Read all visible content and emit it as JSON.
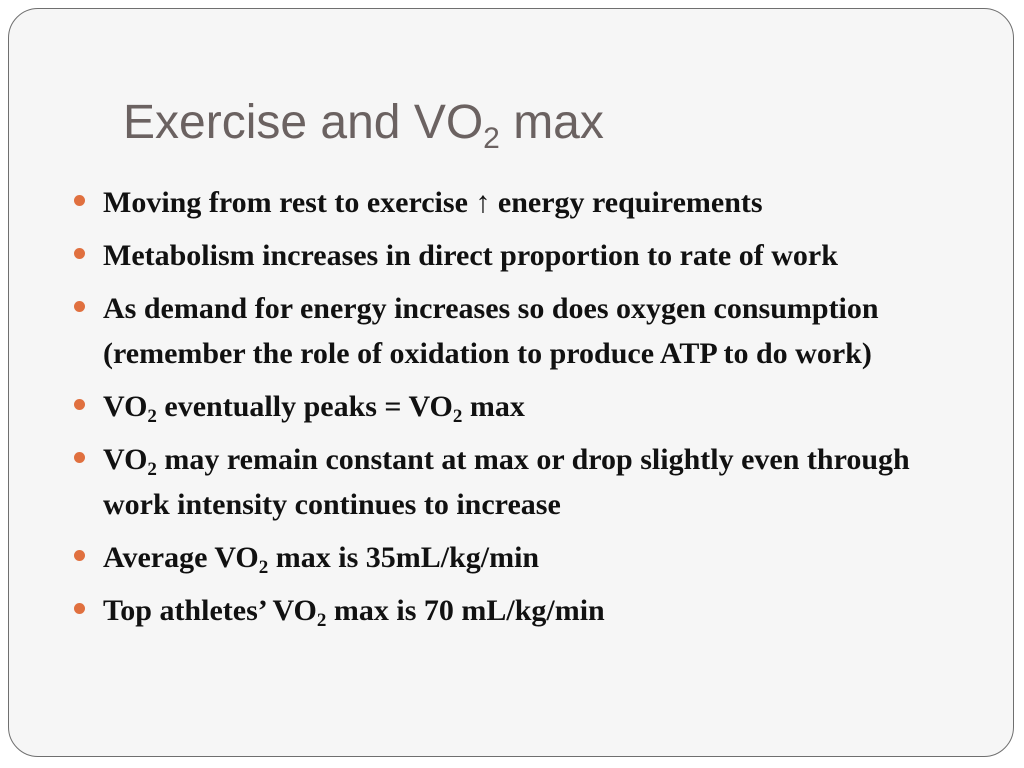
{
  "slide": {
    "title_pre": "Exercise and VO",
    "title_sub": "2",
    "title_post": " max",
    "bullets": [
      {
        "text": "Moving from rest to exercise ↑ energy requirements"
      },
      {
        "text": "Metabolism increases in direct proportion to rate of work"
      },
      {
        "text": "As demand for energy increases so does oxygen consumption (remember the role of oxidation to produce ATP to do work)"
      },
      {
        "a": "VO",
        "a_sub": "2",
        "b": " eventually peaks = VO",
        "b_sub": "2",
        "c": " max"
      },
      {
        "a": "VO",
        "a_sub": "2",
        "b": " may remain constant at max or drop slightly even through work intensity continues to increase"
      },
      {
        "a": "Average VO",
        "a_sub": "2",
        "b": " max is 35mL/kg/min"
      },
      {
        "a": "Top athletes’ VO",
        "a_sub": "2",
        "b": " max is 70 mL/kg/min"
      }
    ],
    "colors": {
      "title": "#6b6261",
      "bullet_marker": "#e0703f",
      "body_text": "#111111",
      "slide_background": "#f6f6f6"
    }
  }
}
